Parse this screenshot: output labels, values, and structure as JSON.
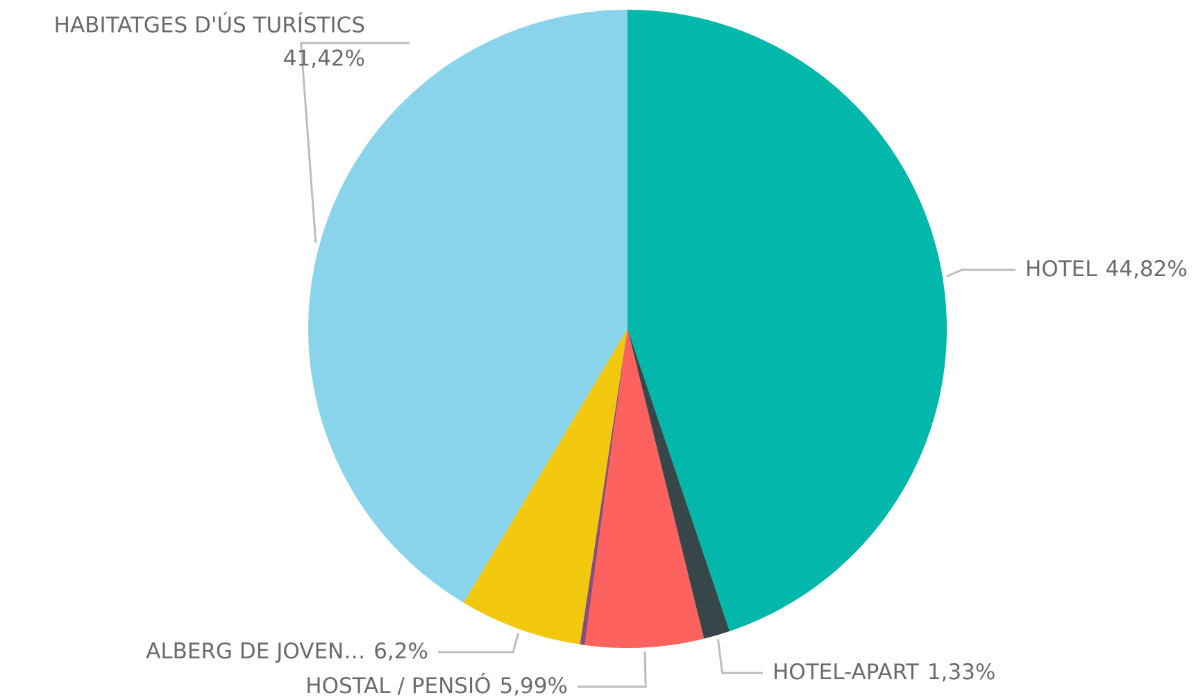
{
  "chart_data": {
    "type": "pie",
    "categories": [
      "HOTEL",
      "HOTEL-APART",
      "HOSTAL / PENSIÓ",
      null,
      "ALBERG DE JOVEN…",
      "HABITATGES D'ÚS TURÍSTICS"
    ],
    "values": [
      44.82,
      1.33,
      5.99,
      0.24,
      6.2,
      41.42
    ],
    "value_labels": [
      "44,82%",
      "1,33%",
      "5,99%",
      null,
      "6,2%",
      "41,42%"
    ],
    "colors": [
      "#01b8aa",
      "#374649",
      "#fd625e",
      "#8a4f7d",
      "#f2c80f",
      "#8ad4eb"
    ]
  }
}
